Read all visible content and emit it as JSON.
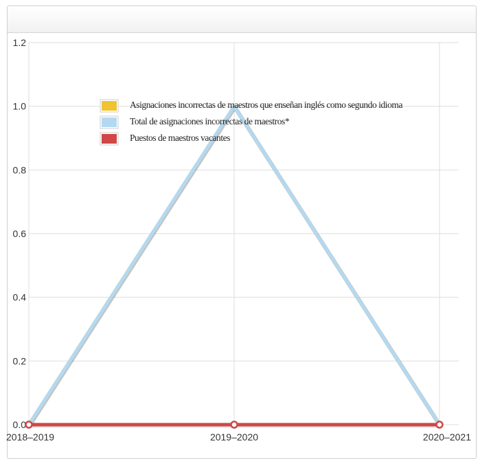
{
  "chart_data": {
    "type": "line",
    "categories": [
      "2018–2019",
      "2019–2020",
      "2020–2021"
    ],
    "series": [
      {
        "name": "Asignaciones incorrectas de maestros que enseñan inglés como segundo idioma",
        "color": "#f0c330",
        "values": [
          0,
          1,
          0
        ]
      },
      {
        "name": "Total de asignaciones incorrectas de maestros*",
        "color": "#b3d9f2",
        "values": [
          0,
          1,
          0
        ]
      },
      {
        "name": "Puestos de maestros vacantes",
        "color": "#d04747",
        "values": [
          0,
          0,
          0
        ]
      }
    ],
    "y_ticks": [
      "0.0",
      "0.2",
      "0.4",
      "0.6",
      "0.8",
      "1.0",
      "1.2"
    ],
    "ylim": [
      0,
      1.2
    ],
    "grid": true,
    "legend_position": "top-left"
  }
}
